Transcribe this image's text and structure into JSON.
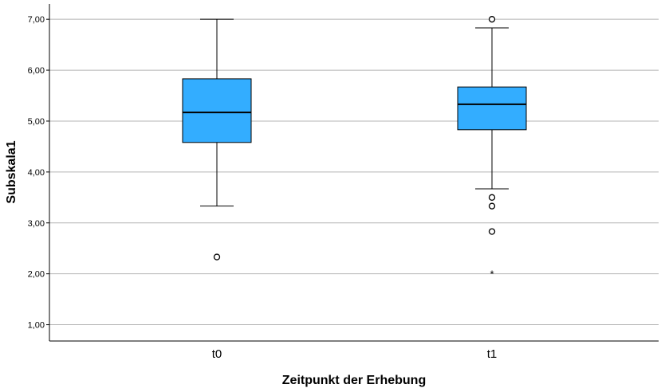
{
  "chart_data": {
    "type": "boxplot",
    "xlabel": "Zeitpunkt der Erhebung",
    "ylabel": "Subskala1",
    "ylim": [
      0.68,
      7.3
    ],
    "yticks": [
      1,
      2,
      3,
      4,
      5,
      6,
      7
    ],
    "ytick_labels": [
      "1,00",
      "2,00",
      "3,00",
      "4,00",
      "5,00",
      "6,00",
      "7,00"
    ],
    "categories": [
      "t0",
      "t1"
    ],
    "grid": true,
    "box_color": "#33adff",
    "boxes": [
      {
        "category": "t0",
        "whisker_low": 3.33,
        "q1": 4.58,
        "median": 5.17,
        "q3": 5.83,
        "whisker_high": 7.0,
        "outliers": [
          2.33
        ],
        "extremes": []
      },
      {
        "category": "t1",
        "whisker_low": 3.67,
        "q1": 4.83,
        "median": 5.33,
        "q3": 5.67,
        "whisker_high": 6.83,
        "outliers": [
          7.0,
          3.5,
          3.33,
          2.83
        ],
        "extremes": [
          2.0
        ]
      }
    ]
  }
}
